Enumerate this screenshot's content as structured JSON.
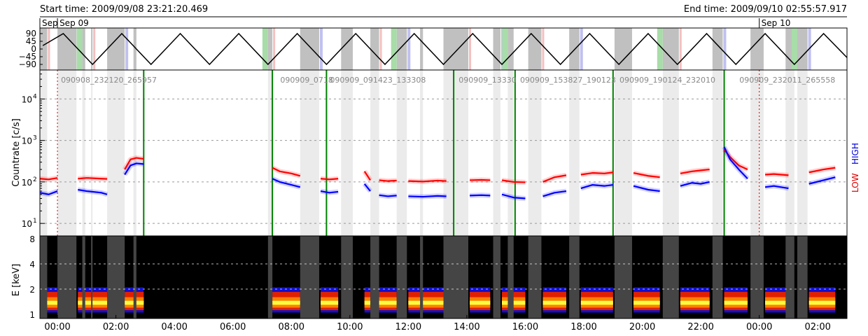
{
  "header": {
    "start_time": "Start time: 2009/09/08 23:21:20.469",
    "end_time": "End time: 2009/09/10 02:55:57.917"
  },
  "chart_data": [
    {
      "type": "line",
      "panel": "attitude",
      "yticks": [
        "90",
        "45",
        "0",
        "−45",
        "−90"
      ],
      "date_labels": [
        {
          "text": "Sep",
          "t": -0.6
        },
        {
          "text": "Sep 09",
          "t": 0
        },
        {
          "text": "Sep 10",
          "t": 24
        }
      ],
      "triangle_vertices": [
        {
          "t": -0.5,
          "v": 20
        },
        {
          "t": 0.2,
          "v": 90
        },
        {
          "t": 1.2,
          "v": -90
        },
        {
          "t": 2.2,
          "v": 90
        },
        {
          "t": 3.2,
          "v": -90
        },
        {
          "t": 4.2,
          "v": 90
        },
        {
          "t": 5.2,
          "v": -90
        },
        {
          "t": 6.2,
          "v": 90
        },
        {
          "t": 7.2,
          "v": -90
        },
        {
          "t": 8.2,
          "v": 90
        },
        {
          "t": 9.2,
          "v": -90
        },
        {
          "t": 10.2,
          "v": 90
        },
        {
          "t": 11.2,
          "v": -90
        },
        {
          "t": 12.2,
          "v": 90
        },
        {
          "t": 13.2,
          "v": -90
        },
        {
          "t": 14.2,
          "v": 90
        },
        {
          "t": 15.2,
          "v": -90
        },
        {
          "t": 16.2,
          "v": 90
        },
        {
          "t": 17.2,
          "v": -90
        },
        {
          "t": 18.2,
          "v": 90
        },
        {
          "t": 19.2,
          "v": -90
        },
        {
          "t": 20.2,
          "v": 90
        },
        {
          "t": 21.2,
          "v": -90
        },
        {
          "t": 22.2,
          "v": 90
        },
        {
          "t": 23.2,
          "v": -90
        },
        {
          "t": 24.2,
          "v": 90
        },
        {
          "t": 25.2,
          "v": -90
        },
        {
          "t": 26.2,
          "v": 90
        },
        {
          "t": 27.0,
          "v": -50
        }
      ],
      "colors": {
        "line": "#000000",
        "shade": "#c0c0c0",
        "green": "#a8dca8",
        "pink": "#f4c0c0",
        "blue": "#c0c0f0"
      }
    },
    {
      "type": "scatter",
      "panel": "countrate",
      "ylabel": "Countrate [c/s]",
      "yscale": "log",
      "ylim": [
        5,
        50000
      ],
      "yticks": [
        {
          "base": "10",
          "exp": "1",
          "v": 10
        },
        {
          "base": "10",
          "exp": "2",
          "v": 100
        },
        {
          "base": "10",
          "exp": "3",
          "v": 1000
        },
        {
          "base": "10",
          "exp": "4",
          "v": 10000
        }
      ],
      "right_labels": {
        "low": "LOW",
        "high": "HIGH"
      },
      "observation_labels": [
        {
          "text": "090908_232120_265957",
          "t": 0
        },
        {
          "text": "090909_0718",
          "t": 7.5
        },
        {
          "text": "090909_091423_133308",
          "t": 9.2
        },
        {
          "text": "090909_13330",
          "t": 13.6
        },
        {
          "text": "090909_153827_190123",
          "t": 15.7
        },
        {
          "text": "090909_190124_232010",
          "t": 19.1
        },
        {
          "text": "090909_232011_265558",
          "t": 23.2
        }
      ],
      "green_markers": [
        2.95,
        7.35,
        9.2,
        13.55,
        15.65,
        19.0,
        22.8
      ],
      "red_dashed_markers": [
        0,
        24
      ],
      "series": [
        {
          "name": "LOW",
          "color": "#ff0000",
          "segments": [
            [
              [
                -0.6,
                120
              ],
              [
                -0.3,
                115
              ],
              [
                0,
                125
              ]
            ],
            [
              [
                0.7,
                120
              ],
              [
                1,
                125
              ],
              [
                1.5,
                120
              ],
              [
                1.7,
                118
              ]
            ],
            [
              [
                2.3,
                200
              ],
              [
                2.5,
                350
              ],
              [
                2.7,
                380
              ],
              [
                2.95,
                360
              ]
            ],
            [
              [
                7.35,
                220
              ],
              [
                7.6,
                180
              ],
              [
                8,
                160
              ],
              [
                8.3,
                140
              ]
            ],
            [
              [
                9,
                120
              ],
              [
                9.3,
                115
              ],
              [
                9.6,
                120
              ]
            ],
            [
              [
                10.5,
                180
              ],
              [
                10.7,
                110
              ]
            ],
            [
              [
                11,
                110
              ],
              [
                11.3,
                105
              ],
              [
                11.6,
                108
              ]
            ],
            [
              [
                12,
                105
              ],
              [
                12.5,
                102
              ],
              [
                13,
                108
              ],
              [
                13.3,
                105
              ]
            ],
            [
              [
                14.1,
                110
              ],
              [
                14.5,
                112
              ],
              [
                14.8,
                110
              ]
            ],
            [
              [
                15.2,
                110
              ],
              [
                15.6,
                100
              ],
              [
                16,
                98
              ]
            ],
            [
              [
                16.6,
                100
              ],
              [
                17,
                130
              ],
              [
                17.4,
                145
              ]
            ],
            [
              [
                17.9,
                150
              ],
              [
                18.3,
                165
              ],
              [
                18.7,
                160
              ],
              [
                19,
                170
              ]
            ],
            [
              [
                19.7,
                165
              ],
              [
                20.2,
                140
              ],
              [
                20.6,
                130
              ]
            ],
            [
              [
                21.3,
                160
              ],
              [
                21.7,
                180
              ],
              [
                22,
                190
              ],
              [
                22.3,
                200
              ]
            ],
            [
              [
                22.8,
                600
              ],
              [
                23,
                400
              ],
              [
                23.3,
                250
              ],
              [
                23.6,
                200
              ]
            ],
            [
              [
                24.2,
                150
              ],
              [
                24.5,
                155
              ],
              [
                25,
                145
              ]
            ],
            [
              [
                25.7,
                170
              ],
              [
                26.2,
                200
              ],
              [
                26.6,
                220
              ]
            ]
          ]
        },
        {
          "name": "HIGH",
          "color": "#0000ff",
          "segments": [
            [
              [
                -0.6,
                55
              ],
              [
                -0.3,
                50
              ],
              [
                0,
                60
              ]
            ],
            [
              [
                0.7,
                65
              ],
              [
                1,
                60
              ],
              [
                1.5,
                55
              ],
              [
                1.7,
                50
              ]
            ],
            [
              [
                2.3,
                150
              ],
              [
                2.5,
                250
              ],
              [
                2.7,
                280
              ],
              [
                2.95,
                270
              ]
            ],
            [
              [
                7.35,
                120
              ],
              [
                7.6,
                100
              ],
              [
                8,
                85
              ],
              [
                8.3,
                75
              ]
            ],
            [
              [
                9,
                60
              ],
              [
                9.3,
                55
              ],
              [
                9.6,
                58
              ]
            ],
            [
              [
                10.5,
                90
              ],
              [
                10.7,
                60
              ]
            ],
            [
              [
                11,
                48
              ],
              [
                11.3,
                45
              ],
              [
                11.6,
                47
              ]
            ],
            [
              [
                12,
                45
              ],
              [
                12.5,
                44
              ],
              [
                13,
                46
              ],
              [
                13.3,
                45
              ]
            ],
            [
              [
                14.1,
                47
              ],
              [
                14.5,
                48
              ],
              [
                14.8,
                47
              ]
            ],
            [
              [
                15.2,
                50
              ],
              [
                15.6,
                42
              ],
              [
                16,
                40
              ]
            ],
            [
              [
                16.6,
                45
              ],
              [
                17,
                55
              ],
              [
                17.4,
                60
              ]
            ],
            [
              [
                17.9,
                70
              ],
              [
                18.3,
                85
              ],
              [
                18.7,
                80
              ],
              [
                19,
                85
              ]
            ],
            [
              [
                19.7,
                80
              ],
              [
                20.2,
                65
              ],
              [
                20.6,
                60
              ]
            ],
            [
              [
                21.3,
                80
              ],
              [
                21.7,
                95
              ],
              [
                22,
                90
              ],
              [
                22.3,
                100
              ]
            ],
            [
              [
                22.8,
                700
              ],
              [
                23,
                350
              ],
              [
                23.3,
                200
              ],
              [
                23.6,
                120
              ]
            ],
            [
              [
                24.2,
                75
              ],
              [
                24.5,
                80
              ],
              [
                25,
                70
              ]
            ],
            [
              [
                25.7,
                90
              ],
              [
                26.2,
                110
              ],
              [
                26.6,
                130
              ]
            ]
          ]
        }
      ]
    },
    {
      "type": "heatmap",
      "panel": "spectrogram",
      "ylabel": "E [keV]",
      "yticks": [
        "8",
        "4",
        "2",
        "1"
      ],
      "xlabels": [
        "00:00",
        "02:00",
        "04:00",
        "06:00",
        "08:00",
        "10:00",
        "12:00",
        "14:00",
        "16:00",
        "18:00",
        "20:00",
        "22:00",
        "00:00",
        "02:00"
      ],
      "xrange_hours": [
        -0.6,
        27.0
      ],
      "colors": {
        "background": "#000000",
        "gap": "#454545",
        "band_blue": "#1010d0",
        "band_red": "#e02000",
        "band_orange": "#ff8000",
        "band_yellow": "#ffff40"
      }
    }
  ],
  "shading": {
    "gaps": [
      [
        -0.6,
        -0.35
      ],
      [
        0,
        0.65
      ],
      [
        0.85,
        0.95
      ],
      [
        1.15,
        1.2
      ],
      [
        1.7,
        2.3
      ],
      [
        2.6,
        2.7
      ],
      [
        7.2,
        7.35
      ],
      [
        8.3,
        8.95
      ],
      [
        9.7,
        10.1
      ],
      [
        10.7,
        11.0
      ],
      [
        11.6,
        11.95
      ],
      [
        12.4,
        12.5
      ],
      [
        13.2,
        14.05
      ],
      [
        14.9,
        15.15
      ],
      [
        15.4,
        15.6
      ],
      [
        16.1,
        16.55
      ],
      [
        17.5,
        17.85
      ],
      [
        19.05,
        19.65
      ],
      [
        20.7,
        21.25
      ],
      [
        22.4,
        22.75
      ],
      [
        23.7,
        24.15
      ],
      [
        24.9,
        25.2
      ],
      [
        25.3,
        25.65
      ]
    ],
    "no_data": [
      [
        2.95,
        7.35
      ]
    ]
  }
}
